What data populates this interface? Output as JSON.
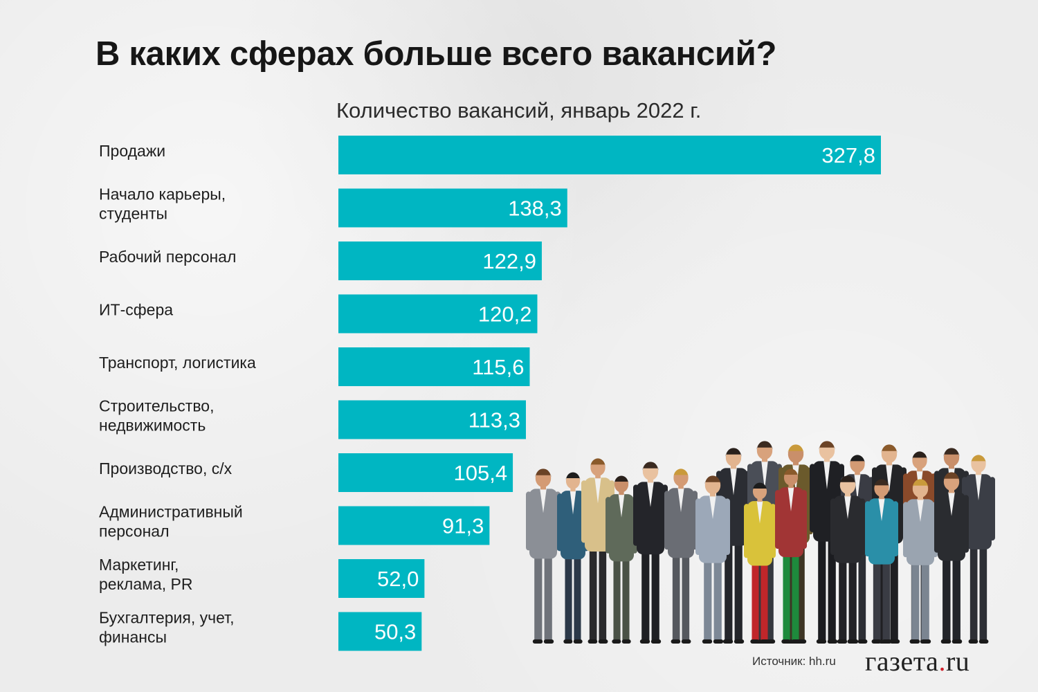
{
  "title": "В каких сферах больше всего вакансий?",
  "subtitle": "Количество вакансий, январь 2022 г.",
  "source": "Источник: hh.ru",
  "logo": {
    "name": "газета",
    "dot": ".",
    "suffix": "ru"
  },
  "colors": {
    "bar": "#00b6c2",
    "bar_label": "#ffffff",
    "category_label": "#1e1e1e"
  },
  "chart_data": {
    "type": "bar",
    "orientation": "horizontal",
    "title": "В каких сферах больше всего вакансий?",
    "subtitle": "Количество вакансий, январь 2022 г.",
    "categories": [
      [
        "Продажи"
      ],
      [
        "Начало карьеры,",
        "студенты"
      ],
      [
        "Рабочий персонал"
      ],
      [
        "ИТ-сфера"
      ],
      [
        "Транспорт, логистика"
      ],
      [
        "Строительство,",
        "недвижимость"
      ],
      [
        "Производство, с/х"
      ],
      [
        "Административный",
        "персонал"
      ],
      [
        "Маркетинг,",
        "реклама, PR"
      ],
      [
        "Бухгалтерия, учет,",
        "финансы"
      ]
    ],
    "values": [
      327.8,
      138.3,
      122.9,
      120.2,
      115.6,
      113.3,
      105.4,
      91.3,
      52.0,
      50.3
    ],
    "value_labels": [
      "327,8",
      "138,3",
      "122,9",
      "120,2",
      "115,6",
      "113,3",
      "105,4",
      "91,3",
      "52,0",
      "50,3"
    ],
    "xlim": [
      0,
      327.8
    ],
    "grid": false,
    "legend": "none"
  }
}
